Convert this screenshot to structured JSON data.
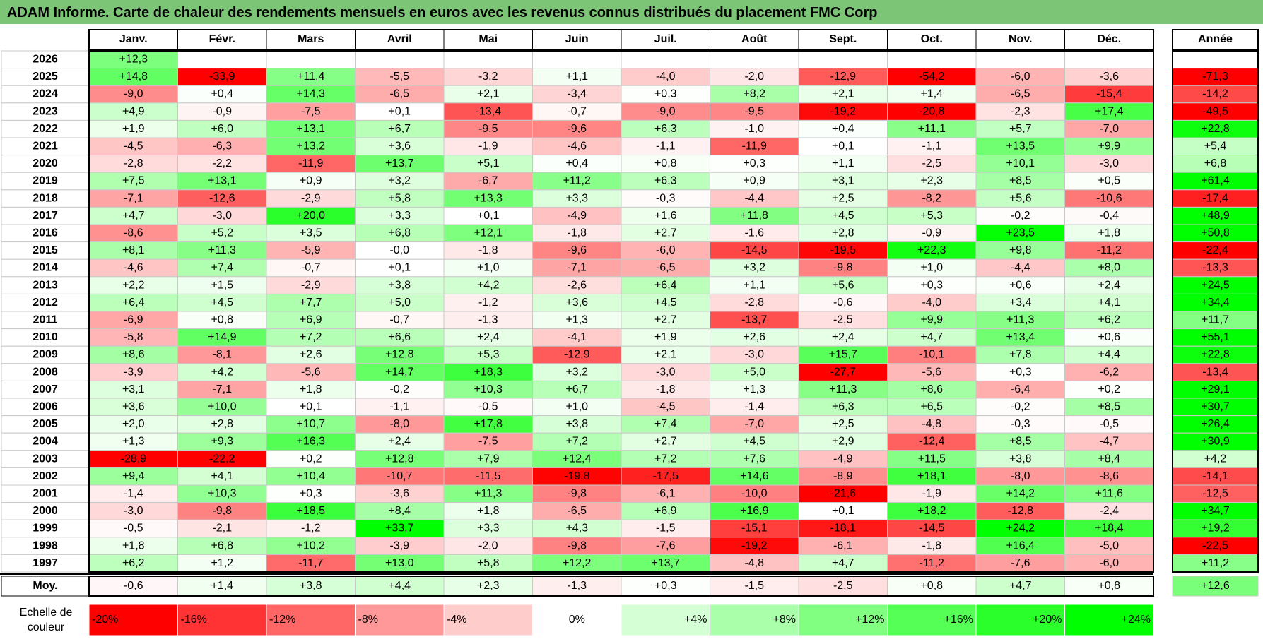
{
  "title": "ADAM Informe. Carte de chaleur des rendements mensuels en euros avec les revenus connus distribués du placement FMC Corp",
  "chart_data": {
    "type": "heatmap",
    "months": [
      "Janv.",
      "Févr.",
      "Mars",
      "Avril",
      "Mai",
      "Juin",
      "Juil.",
      "Août",
      "Sept.",
      "Oct.",
      "Nov.",
      "Déc."
    ],
    "year_header": "Année",
    "avg_label": "Moy.",
    "scale_label": [
      "Echelle de",
      "couleur"
    ],
    "rows": [
      {
        "year": "2026",
        "values": [
          "+12,3",
          "",
          "",
          "",
          "",
          "",
          "",
          "",
          "",
          "",
          "",
          ""
        ],
        "annual": ""
      },
      {
        "year": "2025",
        "values": [
          "+14,8",
          "-33,9",
          "+11,4",
          "-5,5",
          "-3,2",
          "+1,1",
          "-4,0",
          "-2,0",
          "-12,9",
          "-54,2",
          "-6,0",
          "-3,6"
        ],
        "annual": "-71,3"
      },
      {
        "year": "2024",
        "values": [
          "-9,0",
          "+0,4",
          "+14,3",
          "-6,5",
          "+2,1",
          "-3,4",
          "+0,3",
          "+8,2",
          "+2,1",
          "+1,4",
          "-6,5",
          "-15,4"
        ],
        "annual": "-14,2"
      },
      {
        "year": "2023",
        "values": [
          "+4,9",
          "-0,9",
          "-7,5",
          "+0,1",
          "-13,4",
          "-0,7",
          "-9,0",
          "-9,5",
          "-19,2",
          "-20,8",
          "-2,3",
          "+17,4"
        ],
        "annual": "-49,5"
      },
      {
        "year": "2022",
        "values": [
          "+1,9",
          "+6,0",
          "+13,1",
          "+6,7",
          "-9,5",
          "-9,6",
          "+6,3",
          "-1,0",
          "+0,4",
          "+11,1",
          "+5,7",
          "-7,0"
        ],
        "annual": "+22,8"
      },
      {
        "year": "2021",
        "values": [
          "-4,5",
          "-6,3",
          "+13,2",
          "+3,6",
          "-1,9",
          "-4,6",
          "-1,1",
          "-11,9",
          "+0,1",
          "-1,1",
          "+13,5",
          "+9,9"
        ],
        "annual": "+5,4"
      },
      {
        "year": "2020",
        "values": [
          "-2,8",
          "-2,2",
          "-11,9",
          "+13,7",
          "+5,1",
          "+0,4",
          "+0,8",
          "+0,3",
          "+1,1",
          "-2,5",
          "+10,1",
          "-3,0"
        ],
        "annual": "+6,8"
      },
      {
        "year": "2019",
        "values": [
          "+7,5",
          "+13,1",
          "+0,9",
          "+3,2",
          "-6,7",
          "+11,2",
          "+6,3",
          "+0,9",
          "+3,1",
          "+2,3",
          "+8,5",
          "+0,5"
        ],
        "annual": "+61,4"
      },
      {
        "year": "2018",
        "values": [
          "-7,1",
          "-12,6",
          "-2,9",
          "+5,8",
          "+13,3",
          "+3,3",
          "-0,3",
          "-4,4",
          "+2,5",
          "-8,2",
          "+5,6",
          "-10,6"
        ],
        "annual": "-17,4"
      },
      {
        "year": "2017",
        "values": [
          "+4,7",
          "-3,0",
          "+20,0",
          "+3,3",
          "+0,1",
          "-4,9",
          "+1,6",
          "+11,8",
          "+4,5",
          "+5,3",
          "-0,2",
          "-0,4"
        ],
        "annual": "+48,9"
      },
      {
        "year": "2016",
        "values": [
          "-8,6",
          "+5,2",
          "+3,5",
          "+6,8",
          "+12,1",
          "-1,8",
          "+2,7",
          "-1,6",
          "+2,8",
          "-0,9",
          "+23,5",
          "+1,8"
        ],
        "annual": "+50,8"
      },
      {
        "year": "2015",
        "values": [
          "+8,1",
          "+11,3",
          "-5,9",
          "-0,0",
          "-1,8",
          "-9,6",
          "-6,0",
          "-14,5",
          "-19,5",
          "+22,3",
          "+9,8",
          "-11,2"
        ],
        "annual": "-22,4"
      },
      {
        "year": "2014",
        "values": [
          "-4,6",
          "+7,4",
          "-0,7",
          "+0,1",
          "+1,0",
          "-7,1",
          "-6,5",
          "+3,2",
          "-9,8",
          "+1,0",
          "-4,4",
          "+8,0"
        ],
        "annual": "-13,3"
      },
      {
        "year": "2013",
        "values": [
          "+2,2",
          "+1,5",
          "-2,9",
          "+3,8",
          "+4,2",
          "-2,6",
          "+6,4",
          "+1,1",
          "+5,6",
          "+0,3",
          "+0,6",
          "+2,4"
        ],
        "annual": "+24,5"
      },
      {
        "year": "2012",
        "values": [
          "+6,4",
          "+4,5",
          "+7,7",
          "+5,0",
          "-1,2",
          "+3,6",
          "+4,5",
          "-2,8",
          "-0,6",
          "-4,0",
          "+3,4",
          "+4,1"
        ],
        "annual": "+34,4"
      },
      {
        "year": "2011",
        "values": [
          "-6,9",
          "+0,8",
          "+6,9",
          "-0,7",
          "-1,3",
          "+1,3",
          "+2,7",
          "-13,7",
          "-2,5",
          "+9,9",
          "+11,3",
          "+6,2"
        ],
        "annual": "+11,7"
      },
      {
        "year": "2010",
        "values": [
          "-5,8",
          "+14,9",
          "+7,2",
          "+6,6",
          "+2,4",
          "-4,1",
          "+1,9",
          "+2,6",
          "+2,4",
          "+4,7",
          "+13,4",
          "+0,6"
        ],
        "annual": "+55,1"
      },
      {
        "year": "2009",
        "values": [
          "+8,6",
          "-8,1",
          "+2,6",
          "+12,8",
          "+5,3",
          "-12,9",
          "+2,1",
          "-3,0",
          "+15,7",
          "-10,1",
          "+7,8",
          "+4,4"
        ],
        "annual": "+22,8"
      },
      {
        "year": "2008",
        "values": [
          "-3,9",
          "+4,2",
          "-5,6",
          "+14,7",
          "+18,3",
          "+3,2",
          "-3,0",
          "+5,0",
          "-27,7",
          "-5,6",
          "+0,3",
          "-6,2"
        ],
        "annual": "-13,4"
      },
      {
        "year": "2007",
        "values": [
          "+3,1",
          "-7,1",
          "+1,8",
          "-0,2",
          "+10,3",
          "+6,7",
          "-1,8",
          "+1,3",
          "+11,3",
          "+8,6",
          "-6,4",
          "+0,2"
        ],
        "annual": "+29,1"
      },
      {
        "year": "2006",
        "values": [
          "+3,6",
          "+10,0",
          "+0,1",
          "-1,1",
          "-0,5",
          "+1,0",
          "-4,5",
          "-1,4",
          "+6,3",
          "+6,5",
          "-0,2",
          "+8,5"
        ],
        "annual": "+30,7"
      },
      {
        "year": "2005",
        "values": [
          "+2,0",
          "+2,8",
          "+10,7",
          "-8,0",
          "+17,8",
          "+3,8",
          "+7,4",
          "-7,0",
          "+2,5",
          "-4,8",
          "-0,3",
          "-0,5"
        ],
        "annual": "+26,4"
      },
      {
        "year": "2004",
        "values": [
          "+1,3",
          "+9,3",
          "+16,3",
          "+2,4",
          "-7,5",
          "+7,2",
          "+2,7",
          "+4,5",
          "+2,9",
          "-12,4",
          "+8,5",
          "-4,7"
        ],
        "annual": "+30,9"
      },
      {
        "year": "2003",
        "values": [
          "-28,9",
          "-22,2",
          "+0,2",
          "+12,8",
          "+7,9",
          "+12,4",
          "+7,2",
          "+7,6",
          "-4,9",
          "+11,5",
          "+3,8",
          "+8,4"
        ],
        "annual": "+4,2"
      },
      {
        "year": "2002",
        "values": [
          "+9,4",
          "+4,1",
          "+10,4",
          "-10,7",
          "-11,5",
          "-19,8",
          "-17,5",
          "+14,6",
          "-8,9",
          "+18,1",
          "-8,0",
          "-8,6"
        ],
        "annual": "-14,1"
      },
      {
        "year": "2001",
        "values": [
          "-1,4",
          "+10,3",
          "+0,3",
          "-3,6",
          "+11,3",
          "-9,8",
          "-6,1",
          "-10,0",
          "-21,6",
          "-1,9",
          "+14,2",
          "+11,6"
        ],
        "annual": "-12,5"
      },
      {
        "year": "2000",
        "values": [
          "-3,0",
          "-9,8",
          "+18,5",
          "+8,4",
          "+1,8",
          "-6,5",
          "+6,9",
          "+16,9",
          "+0,1",
          "+18,2",
          "-12,8",
          "-2,4"
        ],
        "annual": "+34,7"
      },
      {
        "year": "1999",
        "values": [
          "-0,5",
          "-2,1",
          "-1,2",
          "+33,7",
          "+3,3",
          "+4,3",
          "-1,5",
          "-15,1",
          "-18,1",
          "-14,5",
          "+24,2",
          "+18,4"
        ],
        "annual": "+19,2"
      },
      {
        "year": "1998",
        "values": [
          "+1,8",
          "+6,8",
          "+10,2",
          "-3,9",
          "-2,0",
          "-9,8",
          "-7,6",
          "-19,2",
          "-6,1",
          "-1,8",
          "+16,4",
          "-5,0"
        ],
        "annual": "-22,5"
      },
      {
        "year": "1997",
        "values": [
          "+6,2",
          "+1,2",
          "-11,7",
          "+13,0",
          "+5,8",
          "+12,2",
          "+13,7",
          "-4,8",
          "+4,7",
          "-11,2",
          "-7,6",
          "-6,0"
        ],
        "annual": "+11,2"
      }
    ],
    "average": {
      "values": [
        "-0,6",
        "+1,4",
        "+3,8",
        "+4,4",
        "+2,3",
        "-1,3",
        "+0,3",
        "-1,5",
        "-2,5",
        "+0,8",
        "+4,7",
        "+0,8"
      ],
      "annual": "+12,6"
    },
    "scale": [
      {
        "label": "-20%",
        "value": -20
      },
      {
        "label": "-16%",
        "value": -16
      },
      {
        "label": "-12%",
        "value": -12
      },
      {
        "label": "-8%",
        "value": -8
      },
      {
        "label": "-4%",
        "value": -4
      },
      {
        "label": "0%",
        "value": 0
      },
      {
        "label": "+4%",
        "value": 4
      },
      {
        "label": "+8%",
        "value": 8
      },
      {
        "label": "+12%",
        "value": 12
      },
      {
        "label": "+16%",
        "value": 16
      },
      {
        "label": "+20%",
        "value": 20
      },
      {
        "label": "+24%",
        "value": 24
      }
    ],
    "colors": {
      "negative": "#ff0000",
      "neutral": "#ffffff",
      "positive": "#00ff00",
      "title_bar": "#7cc576"
    }
  }
}
